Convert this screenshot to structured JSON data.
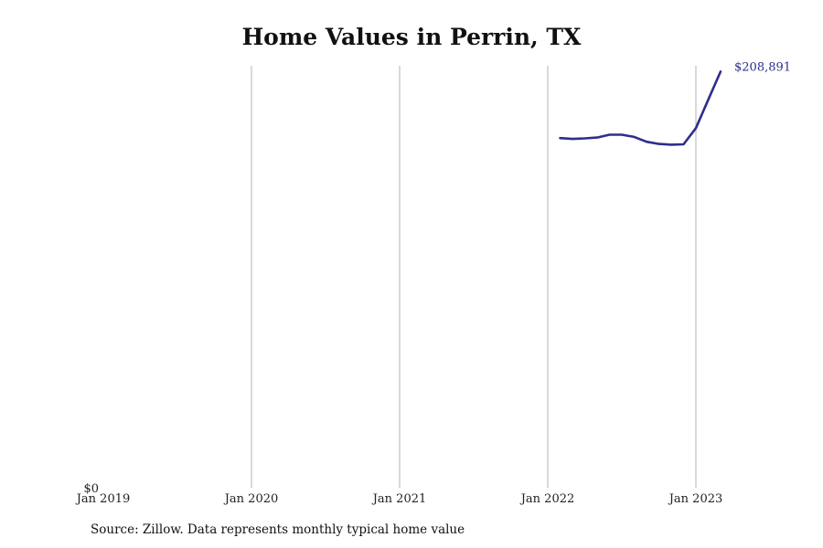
{
  "chart_data": {
    "type": "line",
    "title": "Home Values in Perrin, TX",
    "xlabel": "",
    "ylabel": "",
    "x_ticks": [
      "Jan 2019",
      "Jan 2020",
      "Jan 2021",
      "Jan 2022",
      "Jan 2023"
    ],
    "x_range": [
      "2019-01",
      "2023-05"
    ],
    "y_tick_labels": [
      "$0"
    ],
    "ylim": [
      0,
      210000
    ],
    "grid": "vertical lines at each January",
    "series": [
      {
        "color": "#2e2e8c",
        "x": [
          "2022-02",
          "2022-03",
          "2022-04",
          "2022-05",
          "2022-06",
          "2022-07",
          "2022-08",
          "2022-09",
          "2022-10",
          "2022-11",
          "2022-12",
          "2023-01",
          "2023-02",
          "2023-03"
        ],
        "values": [
          175500,
          175100,
          175400,
          175800,
          177200,
          177200,
          176100,
          173700,
          172600,
          172200,
          172400,
          180500,
          194800,
          208891
        ]
      }
    ],
    "end_label": "$208,891"
  },
  "source_note": "Source: Zillow. Data represents monthly typical home value"
}
